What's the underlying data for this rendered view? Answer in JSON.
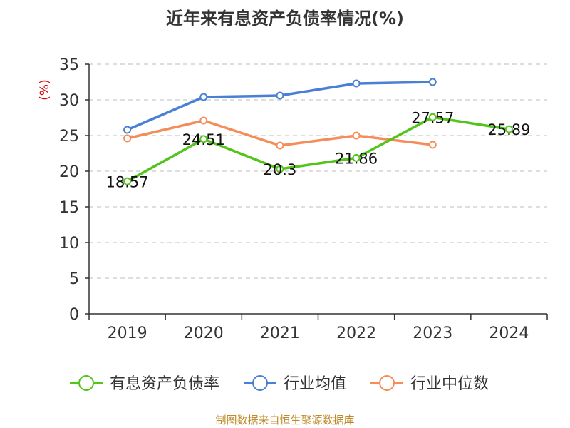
{
  "chart_data": {
    "type": "line",
    "title": "近年来有息资产负债率情况(%)",
    "ylabel": "(%)",
    "xlabel": "",
    "categories": [
      "2019",
      "2020",
      "2021",
      "2022",
      "2023",
      "2024"
    ],
    "ylim": [
      0,
      35
    ],
    "yticks": [
      0,
      5,
      10,
      15,
      20,
      25,
      30,
      35
    ],
    "grid": true,
    "legend_position": "bottom",
    "series": [
      {
        "name": "有息资产负债率",
        "color": "#52c41a",
        "values": [
          18.57,
          24.51,
          20.3,
          21.86,
          27.57,
          25.89
        ],
        "labels": [
          "18.57",
          "24.51",
          "20.3",
          "21.86",
          "27.57",
          "25.89"
        ]
      },
      {
        "name": "行业均值",
        "color": "#4a7fd6",
        "values": [
          25.8,
          30.4,
          30.6,
          32.3,
          32.5,
          null
        ]
      },
      {
        "name": "行业中位数",
        "color": "#f58d5a",
        "values": [
          24.6,
          27.1,
          23.6,
          25.0,
          23.7,
          null
        ]
      }
    ]
  },
  "source": "制图数据来自恒生聚源数据库"
}
